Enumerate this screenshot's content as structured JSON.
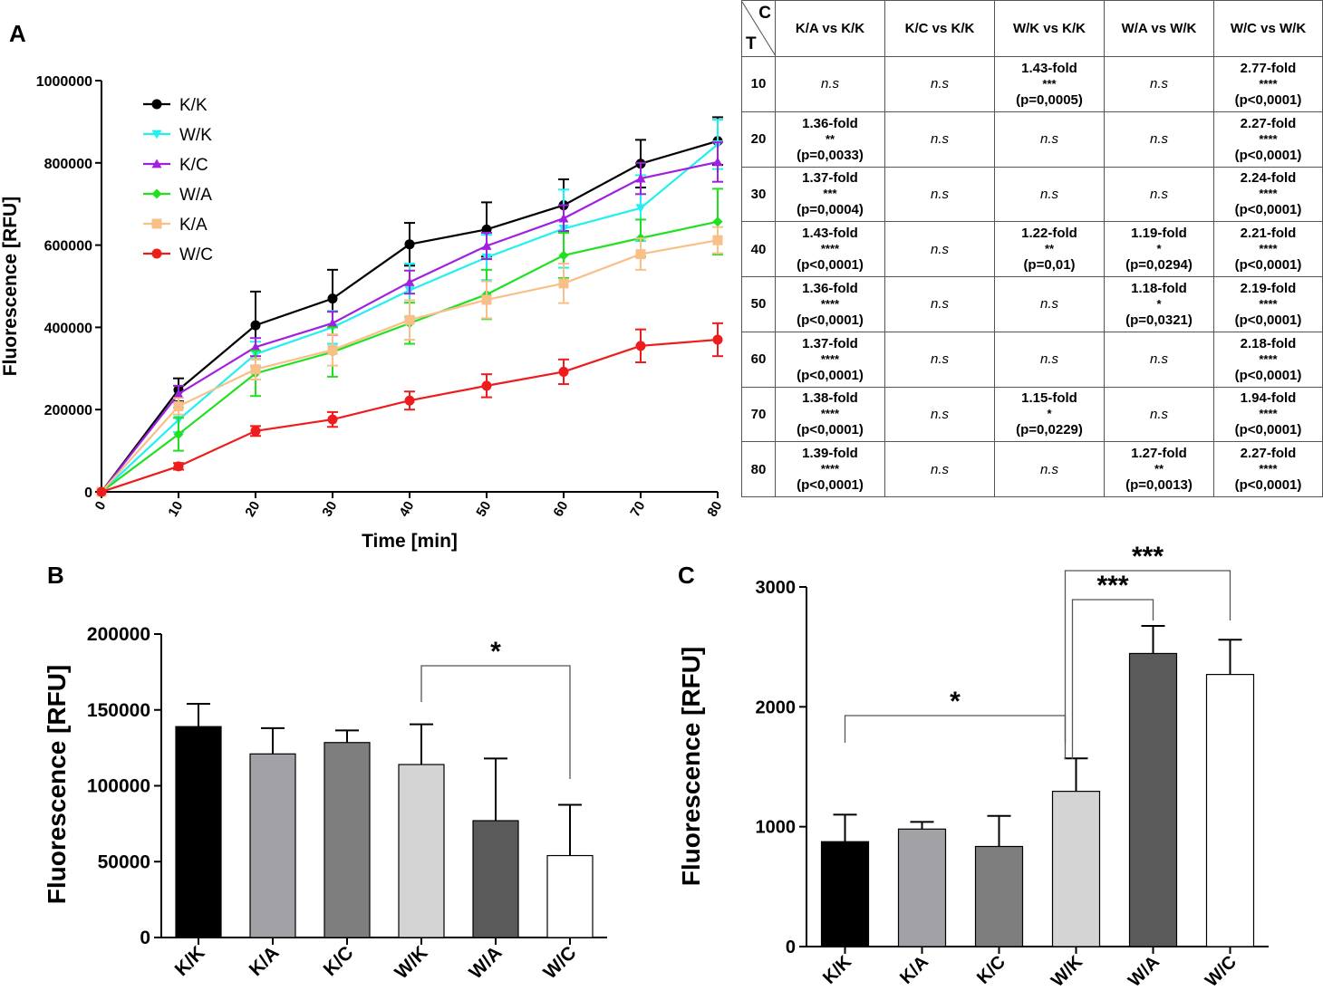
{
  "panels": {
    "a": "A",
    "b": "B",
    "c": "C"
  },
  "chart_data": [
    {
      "type": "line",
      "panel": "A",
      "xlabel": "Time [min]",
      "ylabel": "Fluorescence [RFU]",
      "xlim": [
        0,
        80
      ],
      "ylim": [
        0,
        1000000
      ],
      "x_ticks": [
        "0",
        "10",
        "20",
        "30",
        "40",
        "50",
        "60",
        "70",
        "80"
      ],
      "y_ticks": [
        "0",
        "200000",
        "400000",
        "600000",
        "800000",
        "1000000"
      ],
      "legend_position": "top-left",
      "x": [
        0,
        10,
        20,
        30,
        40,
        50,
        60,
        70,
        80
      ],
      "series": [
        {
          "name": "K/K",
          "color": "#000000",
          "marker": "circle",
          "values": [
            0,
            248000,
            405000,
            470000,
            602000,
            638000,
            697000,
            798000,
            853000
          ],
          "errors": [
            0,
            28000,
            82000,
            70000,
            52000,
            66000,
            63000,
            58000,
            58000
          ]
        },
        {
          "name": "W/K",
          "color": "#20f0f0",
          "marker": "triangle-down",
          "values": [
            0,
            175000,
            335000,
            400000,
            490000,
            570000,
            640000,
            690000,
            845000
          ],
          "errors": [
            0,
            30000,
            30000,
            40000,
            65000,
            55000,
            95000,
            80000,
            60000
          ]
        },
        {
          "name": "K/C",
          "color": "#a020e0",
          "marker": "triangle-up",
          "values": [
            0,
            238000,
            352000,
            410000,
            510000,
            598000,
            665000,
            762000,
            802000
          ],
          "errors": [
            0,
            20000,
            22000,
            28000,
            28000,
            32000,
            32000,
            38000,
            48000
          ]
        },
        {
          "name": "W/A",
          "color": "#20e020",
          "marker": "diamond",
          "values": [
            0,
            140000,
            288000,
            340000,
            410000,
            480000,
            575000,
            617000,
            657000
          ],
          "errors": [
            0,
            40000,
            55000,
            60000,
            50000,
            60000,
            55000,
            45000,
            80000
          ]
        },
        {
          "name": "K/A",
          "color": "#f8c088",
          "marker": "square",
          "values": [
            0,
            208000,
            298000,
            345000,
            418000,
            467000,
            507000,
            578000,
            612000
          ],
          "errors": [
            0,
            20000,
            25000,
            38000,
            48000,
            45000,
            48000,
            38000,
            32000
          ]
        },
        {
          "name": "W/C",
          "color": "#ee1c1c",
          "marker": "circle",
          "values": [
            0,
            62000,
            148000,
            176000,
            222000,
            258000,
            292000,
            355000,
            370000
          ],
          "errors": [
            0,
            8000,
            12000,
            18000,
            22000,
            28000,
            30000,
            40000,
            40000
          ]
        }
      ]
    },
    {
      "type": "bar",
      "panel": "B",
      "ylabel": "Fluorescence [RFU]",
      "ylim": [
        0,
        200000
      ],
      "y_ticks": [
        "0",
        "50000",
        "100000",
        "150000",
        "200000"
      ],
      "categories": [
        "K/K",
        "K/A",
        "K/C",
        "W/K",
        "W/A",
        "W/C"
      ],
      "values": [
        139000,
        121000,
        128500,
        114000,
        77000,
        54000
      ],
      "errors": [
        15000,
        17000,
        8000,
        26500,
        41000,
        33500
      ],
      "colors": [
        "#000000",
        "#a1a1a6",
        "#7e7e7e",
        "#d4d4d4",
        "#5a5a5a",
        "#ffffff"
      ],
      "annotations": [
        {
          "from": "W/K",
          "to": "W/C",
          "label": "*"
        }
      ]
    },
    {
      "type": "bar",
      "panel": "C",
      "ylabel": "Fluorescence [RFU]",
      "ylim": [
        0,
        3000
      ],
      "y_ticks": [
        "0",
        "1000",
        "2000",
        "3000"
      ],
      "categories": [
        "K/K",
        "K/A",
        "K/C",
        "W/K",
        "W/A",
        "W/C"
      ],
      "values": [
        875,
        980,
        835,
        1295,
        2445,
        2270
      ],
      "errors": [
        225,
        60,
        255,
        275,
        230,
        290
      ],
      "colors": [
        "#000000",
        "#a1a1a6",
        "#7e7e7e",
        "#d4d4d4",
        "#5a5a5a",
        "#ffffff"
      ],
      "annotations": [
        {
          "from": "K/K",
          "to": "W/K",
          "label": "*"
        },
        {
          "from": "W/K",
          "to": "W/A",
          "label": "***"
        },
        {
          "from": "W/K",
          "to": "W/C",
          "label": "***"
        }
      ]
    }
  ],
  "table": {
    "corner_top": "C",
    "corner_bottom": "T",
    "headers": [
      "K/A vs K/K",
      "K/C vs K/K",
      "W/K vs K/K",
      "W/A vs W/K",
      "W/C vs W/K"
    ],
    "rows": [
      {
        "time": "10",
        "cells": [
          {
            "ns": "n.s"
          },
          {
            "ns": "n.s"
          },
          {
            "fold": "1.43-fold",
            "stars": "***",
            "p": "(p=0,0005)"
          },
          {
            "ns": "n.s"
          },
          {
            "fold": "2.77-fold",
            "stars": "****",
            "p": "(p<0,0001)"
          }
        ]
      },
      {
        "time": "20",
        "cells": [
          {
            "fold": "1.36-fold",
            "stars": "**",
            "p": "(p=0,0033)"
          },
          {
            "ns": "n.s"
          },
          {
            "ns": "n.s"
          },
          {
            "ns": "n.s"
          },
          {
            "fold": "2.27-fold",
            "stars": "****",
            "p": "(p<0,0001)"
          }
        ]
      },
      {
        "time": "30",
        "cells": [
          {
            "fold": "1.37-fold",
            "stars": "***",
            "p": "(p=0,0004)"
          },
          {
            "ns": "n.s"
          },
          {
            "ns": "n.s"
          },
          {
            "ns": "n.s"
          },
          {
            "fold": "2.24-fold",
            "stars": "****",
            "p": "(p<0,0001)"
          }
        ]
      },
      {
        "time": "40",
        "cells": [
          {
            "fold": "1.43-fold",
            "stars": "****",
            "p": "(p<0,0001)"
          },
          {
            "ns": "n.s"
          },
          {
            "fold": "1.22-fold",
            "stars": "**",
            "p": "(p=0,01)"
          },
          {
            "fold": "1.19-fold",
            "stars": "*",
            "p": "(p=0,0294)"
          },
          {
            "fold": "2.21-fold",
            "stars": "****",
            "p": "(p<0,0001)"
          }
        ]
      },
      {
        "time": "50",
        "cells": [
          {
            "fold": "1.36-fold",
            "stars": "****",
            "p": "(p<0,0001)"
          },
          {
            "ns": "n.s"
          },
          {
            "ns": "n.s"
          },
          {
            "fold": "1.18-fold",
            "stars": "*",
            "p": "(p=0,0321)"
          },
          {
            "fold": "2.19-fold",
            "stars": "****",
            "p": "(p<0,0001)"
          }
        ]
      },
      {
        "time": "60",
        "cells": [
          {
            "fold": "1.37-fold",
            "stars": "****",
            "p": "(p<0,0001)"
          },
          {
            "ns": "n.s"
          },
          {
            "ns": "n.s"
          },
          {
            "ns": "n.s"
          },
          {
            "fold": "2.18-fold",
            "stars": "****",
            "p": "(p<0,0001)"
          }
        ]
      },
      {
        "time": "70",
        "cells": [
          {
            "fold": "1.38-fold",
            "stars": "****",
            "p": "(p<0,0001)"
          },
          {
            "ns": "n.s"
          },
          {
            "fold": "1.15-fold",
            "stars": "*",
            "p": "(p=0,0229)"
          },
          {
            "ns": "n.s"
          },
          {
            "fold": "1.94-fold",
            "stars": "****",
            "p": "(p<0,0001)"
          }
        ]
      },
      {
        "time": "80",
        "cells": [
          {
            "fold": "1.39-fold",
            "stars": "****",
            "p": "(p<0,0001)"
          },
          {
            "ns": "n.s"
          },
          {
            "ns": "n.s"
          },
          {
            "fold": "1.27-fold",
            "stars": "**",
            "p": "(p=0,0013)"
          },
          {
            "fold": "2.27-fold",
            "stars": "****",
            "p": "(p<0,0001)"
          }
        ]
      }
    ]
  }
}
